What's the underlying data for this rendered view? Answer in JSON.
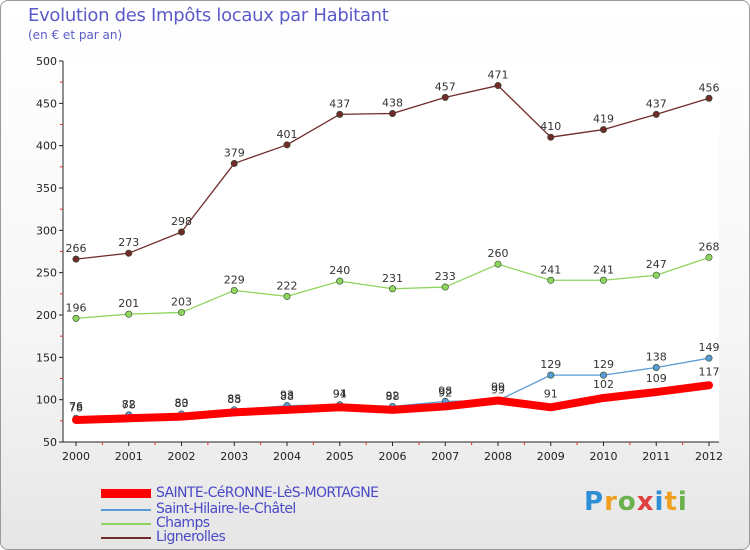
{
  "chart_data": {
    "type": "line",
    "title": "Evolution des Impôts locaux par Habitant",
    "subtitle": "(en € et par an)",
    "xlabel": "",
    "ylabel": "",
    "ylim": [
      50,
      500
    ],
    "yticks": [
      50,
      100,
      150,
      200,
      250,
      300,
      350,
      400,
      450,
      500
    ],
    "grid": false,
    "categories": [
      "2000",
      "2001",
      "2002",
      "2003",
      "2004",
      "2005",
      "2006",
      "2007",
      "2008",
      "2009",
      "2010",
      "2011",
      "2012"
    ],
    "series": [
      {
        "name": "Lignerolles",
        "color": "#722b2b",
        "values": [
          266,
          273,
          298,
          379,
          401,
          437,
          438,
          457,
          471,
          410,
          419,
          437,
          456
        ],
        "labels": [
          "266",
          "273",
          "298",
          "379",
          "401",
          "437",
          "438",
          "457",
          "471",
          "410",
          "419",
          "437",
          "456"
        ]
      },
      {
        "name": "Champs",
        "color": "#8fd45e",
        "values": [
          196,
          201,
          203,
          229,
          222,
          240,
          231,
          233,
          260,
          241,
          241,
          247,
          268
        ],
        "labels": [
          "196",
          "201",
          "203",
          "229",
          "222",
          "240",
          "231",
          "233",
          "260",
          "241",
          "241",
          "247",
          "268"
        ]
      },
      {
        "name": "Saint-Hilaire-le-Châtel",
        "color": "#5b9bd5",
        "values": [
          78,
          82,
          83,
          88,
          93,
          94,
          92,
          98,
          99,
          129,
          129,
          138,
          149
        ],
        "labels": [
          "78",
          "82",
          "83",
          "88",
          "93",
          "94",
          "92",
          "98",
          "99",
          "129",
          "129",
          "138",
          "149"
        ]
      },
      {
        "name": "SAINTE-CéRONNE-LèS-MORTAGNE",
        "color": "#ff0000",
        "values": [
          76,
          78,
          80,
          85,
          88,
          91,
          88,
          92,
          99,
          91,
          102,
          109,
          117
        ],
        "labels": [
          "76",
          "78",
          "80",
          "85",
          "88",
          "91",
          "88",
          "92",
          "99",
          "91",
          "102",
          "109",
          "117"
        ]
      }
    ]
  },
  "legend": [
    {
      "name": "SAINTE-CéRONNE-LèS-MORTAGNE",
      "color": "#ff0000",
      "weight": "thick"
    },
    {
      "name": "Saint-Hilaire-le-Châtel",
      "color": "#5b9bd5",
      "weight": "thin"
    },
    {
      "name": "Champs",
      "color": "#8fd45e",
      "weight": "thin"
    },
    {
      "name": "Lignerolles",
      "color": "#722b2b",
      "weight": "thin"
    }
  ],
  "logo": {
    "letters": [
      "P",
      "r",
      "o",
      "x",
      "i",
      "t",
      "i"
    ],
    "colors": [
      "#2f8fd6",
      "#f0a020",
      "#6ab04c",
      "#e04040",
      "#2f8fd6",
      "#f0a020",
      "#6ab04c"
    ]
  }
}
